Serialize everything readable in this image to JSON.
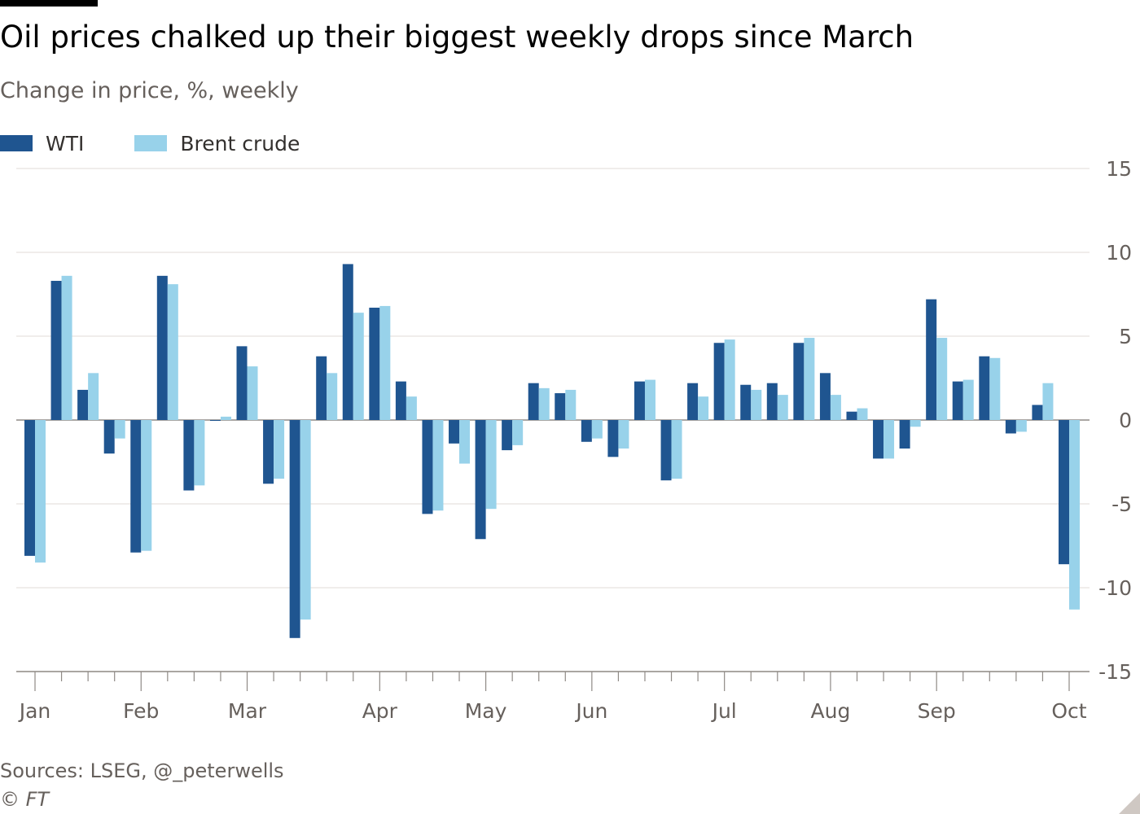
{
  "header": {
    "title": "Oil prices chalked up their biggest weekly drops since March",
    "subtitle": "Change in price, %, weekly"
  },
  "legend": [
    {
      "label": "WTI",
      "color": "#1f5590"
    },
    {
      "label": "Brent crude",
      "color": "#98d2ea"
    }
  ],
  "chart_data": {
    "type": "bar",
    "title": "Oil prices chalked up their biggest weekly drops since March",
    "subtitle": "Change in price, %, weekly",
    "ylim": [
      -15,
      15
    ],
    "yticks": [
      15,
      10,
      5,
      0,
      -5,
      -10,
      -15
    ],
    "y_axis_side": "right",
    "grid": true,
    "legend_position": "top-left",
    "x_tick_labels": [
      "Jan",
      "Feb",
      "Mar",
      "Apr",
      "May",
      "Jun",
      "Jul",
      "Aug",
      "Sep",
      "Oct"
    ],
    "month_start_weeks": [
      0,
      4,
      8,
      13,
      17,
      21,
      26,
      30,
      34,
      39
    ],
    "series": [
      {
        "name": "WTI",
        "color": "#1f5590",
        "values": [
          -8.1,
          8.3,
          1.8,
          -2.0,
          -7.9,
          8.6,
          -4.2,
          0.0,
          4.4,
          -3.8,
          -13.0,
          3.8,
          9.3,
          6.7,
          2.3,
          -5.6,
          -1.4,
          -7.1,
          -1.8,
          2.2,
          1.6,
          -1.3,
          -2.2,
          2.3,
          -3.6,
          2.2,
          4.6,
          2.1,
          2.2,
          4.6,
          2.8,
          0.5,
          -2.3,
          -1.7,
          7.2,
          2.3,
          3.8,
          -0.8,
          0.9,
          -8.6
        ]
      },
      {
        "name": "Brent crude",
        "color": "#98d2ea",
        "values": [
          -8.5,
          8.6,
          2.8,
          -1.1,
          -7.8,
          8.1,
          -3.9,
          0.2,
          3.2,
          -3.5,
          -11.9,
          2.8,
          6.4,
          6.8,
          1.4,
          -5.4,
          -2.6,
          -5.3,
          -1.5,
          1.9,
          1.8,
          -1.1,
          -1.7,
          2.4,
          -3.5,
          1.4,
          4.8,
          1.8,
          1.5,
          4.9,
          1.5,
          0.7,
          -2.3,
          -0.4,
          4.9,
          2.4,
          3.7,
          -0.7,
          2.2,
          -11.3
        ]
      }
    ]
  },
  "footer": {
    "source": "Sources: LSEG, @_peterwells",
    "copyright": "© FT"
  }
}
